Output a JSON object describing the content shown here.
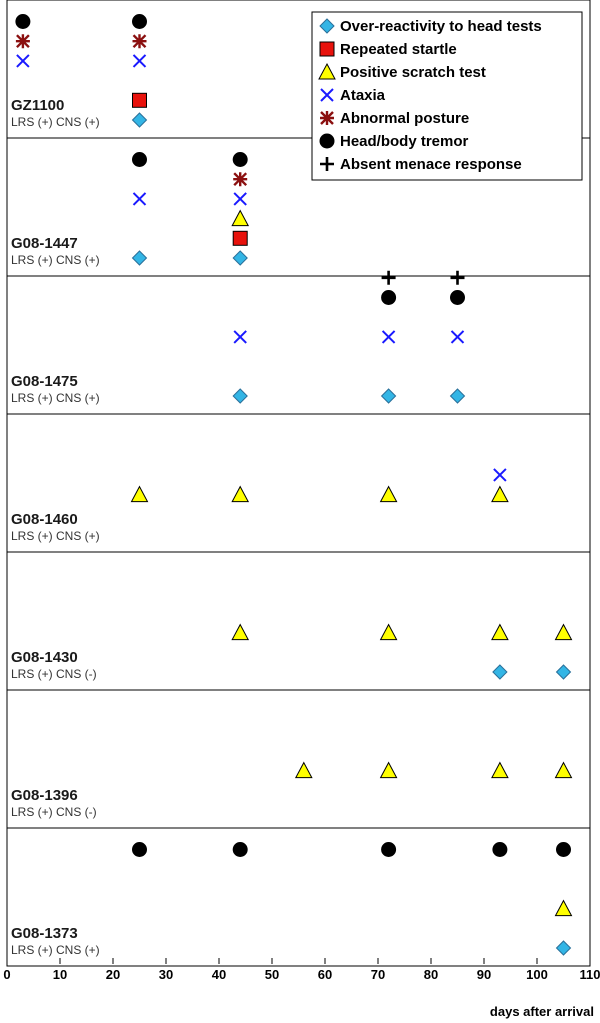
{
  "chart_data": {
    "type": "scatter",
    "title": "",
    "xlabel": "days after arrival",
    "ylabel": "",
    "xlim": [
      0,
      110
    ],
    "xticks": [
      0,
      10,
      20,
      30,
      40,
      50,
      60,
      70,
      80,
      90,
      100,
      110
    ],
    "legend_position": "top-right",
    "legend": [
      {
        "key": "overreact",
        "label": "Over-reactivity to head tests",
        "marker": "diamond",
        "color": "#33b5e5"
      },
      {
        "key": "startle",
        "label": "Repeated startle",
        "marker": "square",
        "color": "#e8120c"
      },
      {
        "key": "scratch",
        "label": "Positive scratch test",
        "marker": "triangle",
        "color": "#ffff00"
      },
      {
        "key": "ataxia",
        "label": "Ataxia",
        "marker": "x",
        "color": "#1a1aff"
      },
      {
        "key": "posture",
        "label": "Abnormal posture",
        "marker": "asterisk",
        "color": "#8b1010"
      },
      {
        "key": "tremor",
        "label": "Head/body tremor",
        "marker": "circle",
        "color": "#000000"
      },
      {
        "key": "menace",
        "label": "Absent menace response",
        "marker": "plus",
        "color": "#000000"
      }
    ],
    "animals": [
      {
        "id": "GZ1100",
        "status": "LRS (+) CNS (+)",
        "observations": [
          {
            "day": 3,
            "signs": [
              "tremor",
              "posture",
              "ataxia"
            ]
          },
          {
            "day": 25,
            "signs": [
              "tremor",
              "posture",
              "ataxia",
              "startle",
              "overreact"
            ]
          }
        ]
      },
      {
        "id": "G08-1447",
        "status": "LRS (+) CNS (+)",
        "observations": [
          {
            "day": 25,
            "signs": [
              "tremor",
              "ataxia",
              "overreact"
            ]
          },
          {
            "day": 44,
            "signs": [
              "tremor",
              "posture",
              "ataxia",
              "scratch",
              "startle",
              "overreact"
            ]
          }
        ]
      },
      {
        "id": "G08-1475",
        "status": "LRS (+) CNS (+)",
        "observations": [
          {
            "day": 44,
            "signs": [
              "ataxia",
              "overreact"
            ]
          },
          {
            "day": 72,
            "signs": [
              "menace",
              "tremor",
              "ataxia",
              "overreact"
            ]
          },
          {
            "day": 85,
            "signs": [
              "menace",
              "tremor",
              "ataxia",
              "overreact"
            ]
          }
        ]
      },
      {
        "id": "G08-1460",
        "status": "LRS (+) CNS (+)",
        "observations": [
          {
            "day": 25,
            "signs": [
              "scratch"
            ]
          },
          {
            "day": 44,
            "signs": [
              "scratch"
            ]
          },
          {
            "day": 72,
            "signs": [
              "scratch"
            ]
          },
          {
            "day": 93,
            "signs": [
              "ataxia",
              "scratch"
            ]
          }
        ]
      },
      {
        "id": "G08-1430",
        "status": "LRS (+) CNS (-)",
        "observations": [
          {
            "day": 44,
            "signs": [
              "scratch"
            ]
          },
          {
            "day": 72,
            "signs": [
              "scratch"
            ]
          },
          {
            "day": 93,
            "signs": [
              "scratch",
              "overreact"
            ]
          },
          {
            "day": 105,
            "signs": [
              "scratch",
              "overreact"
            ]
          }
        ]
      },
      {
        "id": "G08-1396",
        "status": "LRS (+) CNS (-)",
        "observations": [
          {
            "day": 56,
            "signs": [
              "scratch"
            ]
          },
          {
            "day": 72,
            "signs": [
              "scratch"
            ]
          },
          {
            "day": 93,
            "signs": [
              "scratch"
            ]
          },
          {
            "day": 105,
            "signs": [
              "scratch"
            ]
          }
        ]
      },
      {
        "id": "G08-1373",
        "status": "LRS (+) CNS (+)",
        "observations": [
          {
            "day": 25,
            "signs": [
              "tremor"
            ]
          },
          {
            "day": 44,
            "signs": [
              "tremor"
            ]
          },
          {
            "day": 72,
            "signs": [
              "tremor"
            ]
          },
          {
            "day": 93,
            "signs": [
              "tremor"
            ]
          },
          {
            "day": 105,
            "signs": [
              "tremor",
              "scratch",
              "overreact"
            ]
          }
        ]
      }
    ]
  }
}
